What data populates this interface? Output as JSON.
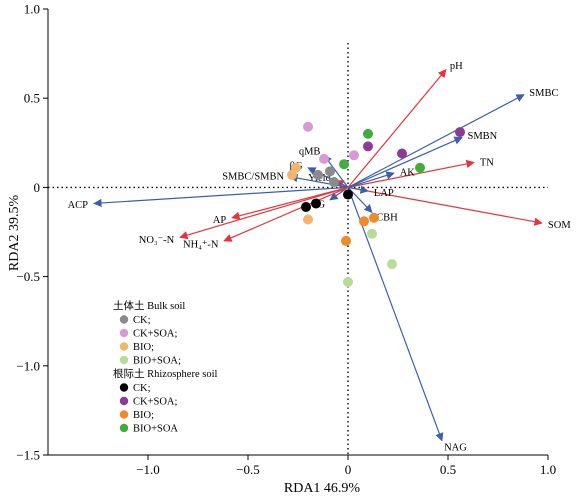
{
  "chart_data": {
    "type": "scatter",
    "xlabel": "RDA1 46.9%",
    "ylabel": "RDA2 39.5%",
    "xlim": [
      -1.5,
      1.0
    ],
    "ylim": [
      -1.5,
      1.0
    ],
    "x_ticks": [
      -1.0,
      -0.5,
      0,
      0.5,
      1.0
    ],
    "y_ticks": [
      -1.5,
      -1.0,
      -0.5,
      0,
      0.5,
      1.0
    ],
    "x_tick_labels": [
      "−1.0",
      "−0.5",
      "0",
      "0.5",
      "1.0"
    ],
    "y_tick_labels": [
      "−1.5",
      "−1.0",
      "−0.5",
      "0",
      "0.5",
      "1.0"
    ],
    "reference_lines": {
      "x": 0,
      "y": 0,
      "style": "dotted"
    },
    "colors": {
      "red_arrow": "#e8333a",
      "blue_arrow": "#3a5fae"
    },
    "arrows": [
      {
        "label": "pH",
        "x": 0.49,
        "y": 0.66,
        "color": "red"
      },
      {
        "label": "SMBC",
        "x": 0.88,
        "y": 0.52,
        "color": "blue"
      },
      {
        "label": "SMBN",
        "x": 0.57,
        "y": 0.28,
        "color": "blue"
      },
      {
        "label": "TN",
        "x": 0.63,
        "y": 0.14,
        "color": "red"
      },
      {
        "label": "AK",
        "x": 0.23,
        "y": 0.08,
        "color": "blue"
      },
      {
        "label": "SOM",
        "x": 0.97,
        "y": -0.2,
        "color": "red"
      },
      {
        "label": "NAG",
        "x": 0.47,
        "y": -1.42,
        "color": "blue"
      },
      {
        "label": "CBH",
        "x": 0.12,
        "y": -0.14,
        "color": "blue"
      },
      {
        "label": "LAP",
        "x": 0.1,
        "y": -0.02,
        "color": "blue"
      },
      {
        "label": "αG",
        "x": -0.09,
        "y": -0.07,
        "color": "blue"
      },
      {
        "label": "Yield",
        "x": -0.06,
        "y": 0.04,
        "color": "red"
      },
      {
        "label": "qMB",
        "x": -0.12,
        "y": 0.18,
        "color": "blue"
      },
      {
        "label": "βG",
        "x": -0.2,
        "y": 0.11,
        "color": "blue"
      },
      {
        "label": "SMBC/SMBN",
        "x": -0.29,
        "y": 0.06,
        "color": "blue"
      },
      {
        "label": "ACP",
        "x": -1.27,
        "y": -0.09,
        "color": "blue"
      },
      {
        "label": "AP",
        "x": -0.58,
        "y": -0.17,
        "color": "red"
      },
      {
        "label": "NO₃⁻-N",
        "x": -0.84,
        "y": -0.28,
        "color": "red"
      },
      {
        "label": "NH₄⁺-N",
        "x": -0.62,
        "y": -0.3,
        "color": "red"
      }
    ],
    "legend": {
      "placement": "bottom-left",
      "groups": [
        {
          "title": "土体土 Bulk soil",
          "items": [
            {
              "label": "CK;",
              "color": "#8a8a8a"
            },
            {
              "label": "CK+SOA;",
              "color": "#d89ad6"
            },
            {
              "label": "BIO;",
              "color": "#f2b56b"
            },
            {
              "label": "BIO+SOA;",
              "color": "#b6dc98"
            }
          ]
        },
        {
          "title": "根际土 Rhizosphere soil",
          "items": [
            {
              "label": "CK;",
              "color": "#000000"
            },
            {
              "label": "CK+SOA;",
              "color": "#8b3a98"
            },
            {
              "label": "BIO;",
              "color": "#ef8a2a"
            },
            {
              "label": "BIO+SOA",
              "color": "#3fae3a"
            }
          ]
        }
      ]
    },
    "series": [
      {
        "group": 0,
        "item": 0,
        "points": [
          [
            -0.15,
            0.07
          ],
          [
            -0.09,
            0.09
          ],
          [
            -0.07,
            0.03
          ]
        ]
      },
      {
        "group": 0,
        "item": 1,
        "points": [
          [
            -0.2,
            0.34
          ],
          [
            -0.12,
            0.16
          ],
          [
            0.03,
            0.18
          ]
        ]
      },
      {
        "group": 0,
        "item": 2,
        "points": [
          [
            -0.26,
            0.11
          ],
          [
            -0.2,
            -0.18
          ],
          [
            -0.28,
            0.07
          ]
        ]
      },
      {
        "group": 0,
        "item": 3,
        "points": [
          [
            0.12,
            -0.26
          ],
          [
            0.22,
            -0.43
          ],
          [
            0.0,
            -0.53
          ]
        ]
      },
      {
        "group": 1,
        "item": 0,
        "points": [
          [
            -0.21,
            -0.11
          ],
          [
            -0.16,
            -0.09
          ],
          [
            0.0,
            -0.04
          ]
        ]
      },
      {
        "group": 1,
        "item": 1,
        "points": [
          [
            0.1,
            0.23
          ],
          [
            0.27,
            0.19
          ],
          [
            0.56,
            0.31
          ]
        ]
      },
      {
        "group": 1,
        "item": 2,
        "points": [
          [
            0.08,
            -0.19
          ],
          [
            0.13,
            -0.17
          ],
          [
            -0.01,
            -0.3
          ]
        ]
      },
      {
        "group": 1,
        "item": 3,
        "points": [
          [
            0.1,
            0.3
          ],
          [
            -0.02,
            0.13
          ],
          [
            0.36,
            0.11
          ]
        ]
      }
    ]
  }
}
